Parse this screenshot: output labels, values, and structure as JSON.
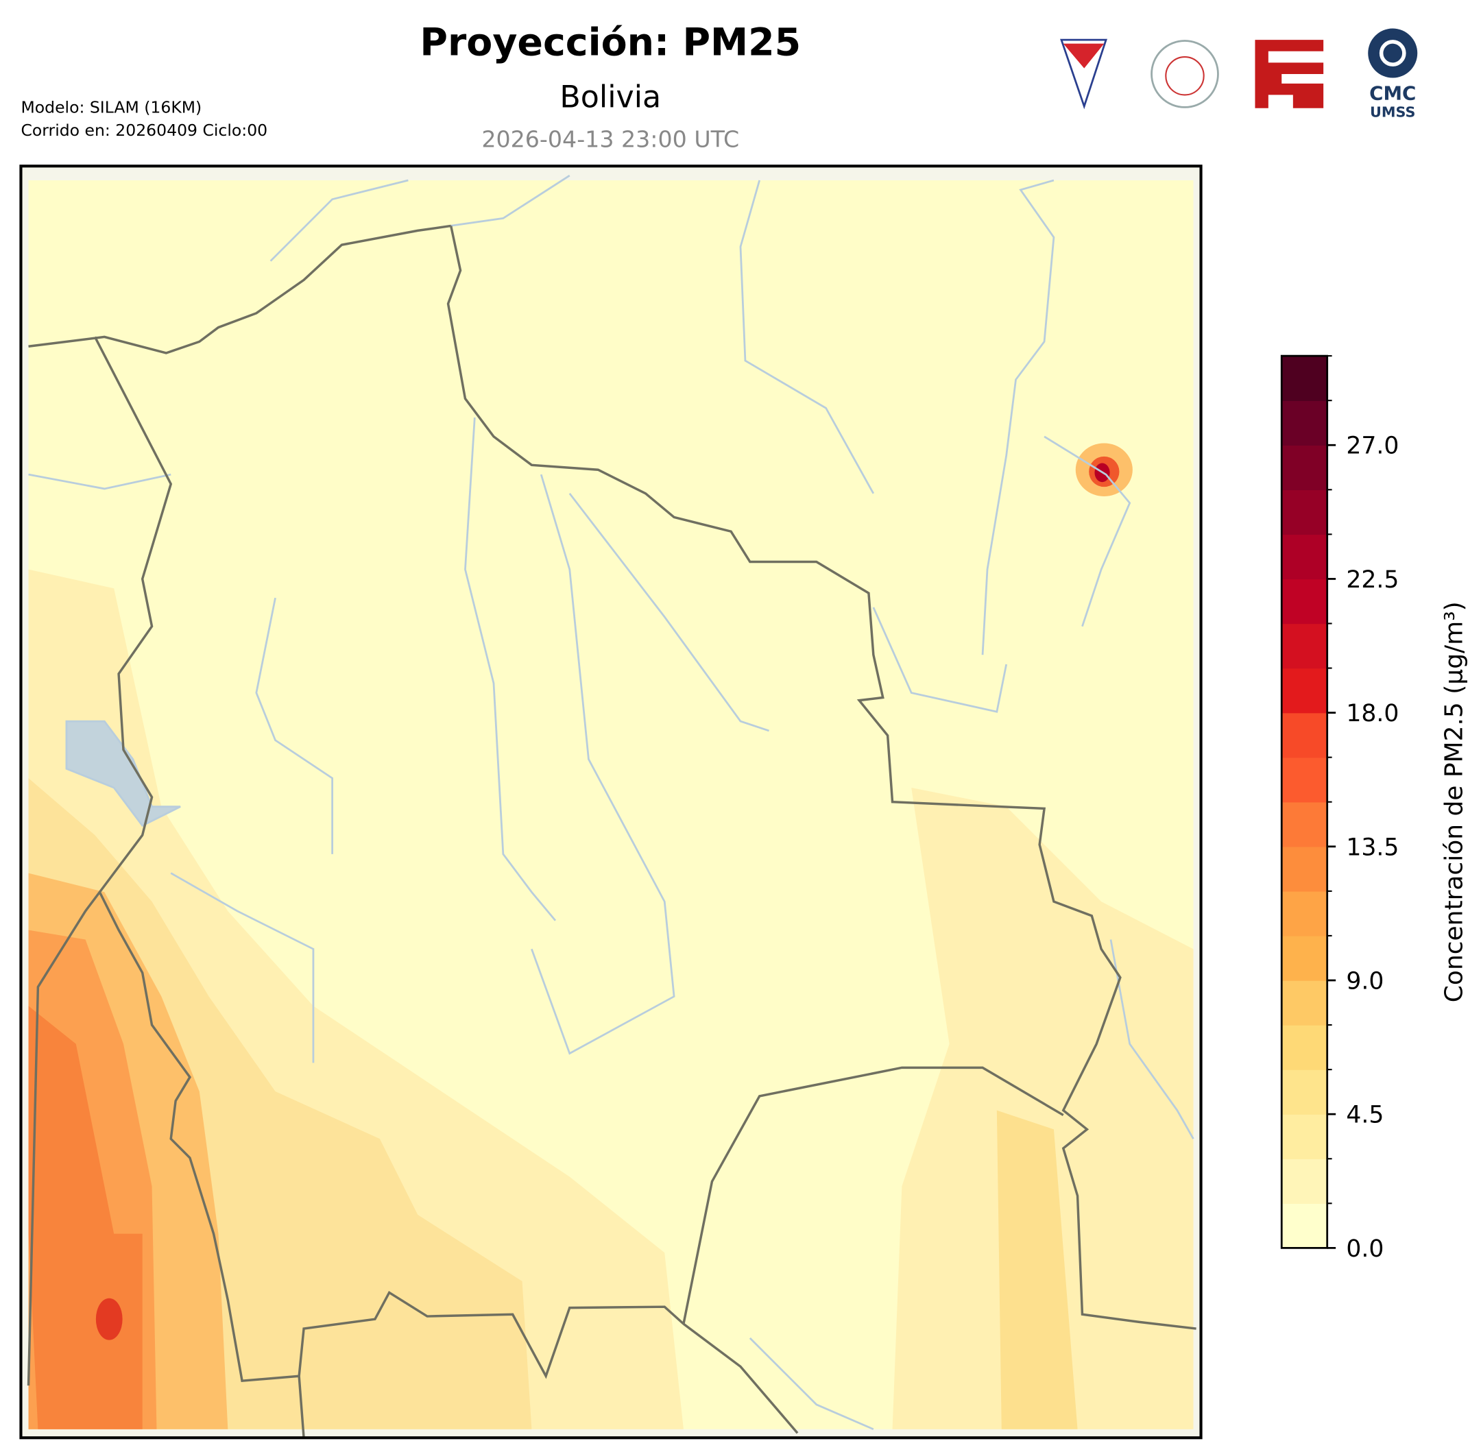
{
  "header": {
    "title": "Proyección: PM25",
    "subtitle": "Bolivia",
    "valid_time": "2026-04-13 23:00 UTC",
    "model": "Modelo: SILAM (16KM)",
    "run": "Corrido en: 20260409 Ciclo:00"
  },
  "logos": {
    "cmc": "CMC",
    "umss": "UMSS"
  },
  "colorbar": {
    "label": "Concentración de PM2.5 (µg/m³)",
    "vlim": [
      0,
      30
    ],
    "levels": [
      0,
      1.5,
      3,
      4.5,
      6,
      7.5,
      9,
      10.5,
      12,
      13.5,
      15,
      16.5,
      18,
      19.5,
      21,
      22.5,
      24,
      25.5,
      27,
      28.5,
      30
    ],
    "colors": [
      "#ffffcc",
      "#fff5b8",
      "#ffeda0",
      "#fee48c",
      "#fed976",
      "#fec965",
      "#feb24c",
      "#fea446",
      "#fd8d3c",
      "#fd7a37",
      "#fc5b2e",
      "#f74a28",
      "#e31a1c",
      "#d41020",
      "#c00225",
      "#ae0026",
      "#960026",
      "#800026",
      "#6a0026",
      "#4f0020"
    ],
    "ticks": [
      {
        "value": 0,
        "label": "0.0"
      },
      {
        "value": 4.5,
        "label": "4.5"
      },
      {
        "value": 9,
        "label": "9.0"
      },
      {
        "value": 13.5,
        "label": "13.5"
      },
      {
        "value": 18,
        "label": "18.0"
      },
      {
        "value": 22.5,
        "label": "22.5"
      },
      {
        "value": 27,
        "label": "27.0"
      }
    ]
  }
}
